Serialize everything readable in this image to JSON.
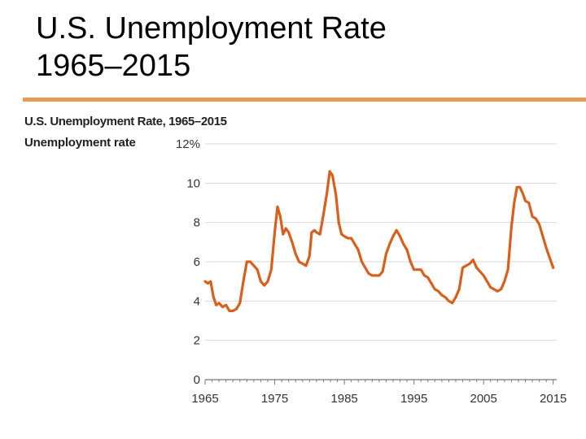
{
  "slide": {
    "title_line1": "U.S. Unemployment Rate",
    "title_line2": "1965–2015"
  },
  "chart_data": {
    "type": "line",
    "title": "U.S. Unemployment Rate, 1965–2015",
    "ylabel": "Unemployment rate",
    "xlabel": "",
    "ylim": [
      0,
      12
    ],
    "xlim": [
      1965,
      2015.5
    ],
    "y_ticks": [
      0,
      2,
      4,
      6,
      8,
      10,
      12
    ],
    "y_tick_labels": [
      "0",
      "2",
      "4",
      "6",
      "8",
      "10",
      "12%"
    ],
    "x_ticks": [
      1965,
      1975,
      1985,
      1995,
      2005,
      2015
    ],
    "x_tick_labels": [
      "1965",
      "1975",
      "1985",
      "1995",
      "2005",
      "2015"
    ],
    "grid": true,
    "line_color": "#d9601c",
    "series": [
      {
        "x": [
          1965.0,
          1965.4,
          1965.8,
          1966.2,
          1966.6,
          1967.0,
          1967.5,
          1968.0,
          1968.5,
          1969.0,
          1969.5,
          1970.0,
          1970.5,
          1971.0,
          1971.5,
          1972.0,
          1972.5,
          1973.0,
          1973.5,
          1974.0,
          1974.5,
          1975.0,
          1975.4,
          1975.8,
          1976.2,
          1976.6,
          1977.0,
          1977.5,
          1978.0,
          1978.5,
          1979.0,
          1979.5,
          1980.0,
          1980.3,
          1980.7,
          1981.0,
          1981.5,
          1982.0,
          1982.5,
          1982.9,
          1983.3,
          1983.8,
          1984.2,
          1984.6,
          1985.0,
          1985.5,
          1986.0,
          1986.5,
          1987.0,
          1987.5,
          1988.0,
          1988.5,
          1989.0,
          1989.5,
          1990.0,
          1990.5,
          1991.0,
          1991.5,
          1992.0,
          1992.5,
          1993.0,
          1993.5,
          1994.0,
          1994.5,
          1995.0,
          1995.5,
          1996.0,
          1996.5,
          1997.0,
          1997.5,
          1998.0,
          1998.5,
          1999.0,
          1999.5,
          2000.0,
          2000.5,
          2001.0,
          2001.5,
          2002.0,
          2002.5,
          2003.0,
          2003.5,
          2004.0,
          2004.5,
          2005.0,
          2005.5,
          2006.0,
          2006.5,
          2007.0,
          2007.5,
          2008.0,
          2008.5,
          2009.0,
          2009.4,
          2009.8,
          2010.2,
          2010.6,
          2011.0,
          2011.5,
          2012.0,
          2012.5,
          2013.0,
          2013.5,
          2014.0,
          2014.5,
          2015.0
        ],
        "y": [
          5.0,
          4.9,
          5.0,
          4.2,
          3.8,
          3.9,
          3.7,
          3.8,
          3.5,
          3.5,
          3.6,
          3.9,
          5.0,
          6.0,
          6.0,
          5.8,
          5.6,
          5.0,
          4.8,
          5.0,
          5.6,
          7.5,
          8.8,
          8.3,
          7.4,
          7.7,
          7.5,
          7.0,
          6.4,
          6.0,
          5.9,
          5.8,
          6.3,
          7.5,
          7.6,
          7.5,
          7.4,
          8.4,
          9.5,
          10.6,
          10.4,
          9.4,
          8.0,
          7.4,
          7.3,
          7.2,
          7.2,
          6.9,
          6.6,
          6.0,
          5.7,
          5.4,
          5.3,
          5.3,
          5.3,
          5.5,
          6.4,
          6.9,
          7.3,
          7.6,
          7.3,
          6.9,
          6.6,
          6.0,
          5.6,
          5.6,
          5.6,
          5.3,
          5.2,
          4.9,
          4.6,
          4.5,
          4.3,
          4.2,
          4.0,
          3.9,
          4.2,
          4.6,
          5.7,
          5.8,
          5.9,
          6.1,
          5.7,
          5.5,
          5.3,
          5.0,
          4.7,
          4.6,
          4.5,
          4.6,
          5.0,
          5.6,
          7.8,
          9.0,
          9.8,
          9.8,
          9.5,
          9.1,
          9.0,
          8.3,
          8.2,
          7.9,
          7.3,
          6.7,
          6.2,
          5.7
        ]
      }
    ]
  }
}
